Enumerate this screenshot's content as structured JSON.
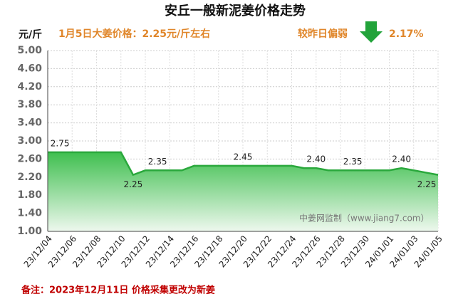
{
  "chart_data": {
    "type": "area",
    "title": "安丘一般新泥姜价格走势",
    "unit_label": "元/斤",
    "annotation": "1月5日大姜价格：2.25元/斤左右",
    "change_label": "较昨日偏弱",
    "change_value": "2.17%",
    "watermark": "中姜网监制（www.jiang7.com）",
    "footnote": "备注：2023年12月11日 价格采集更改为新姜",
    "x": [
      "23/12/04",
      null,
      "23/12/06",
      null,
      "23/12/08",
      null,
      "23/12/10",
      null,
      "23/12/12",
      null,
      "23/12/14",
      null,
      "23/12/16",
      null,
      "23/12/18",
      null,
      "23/12/20",
      null,
      "23/12/22",
      null,
      "23/12/24",
      null,
      "23/12/26",
      null,
      "23/12/28",
      null,
      "23/12/30",
      null,
      "24/01/01",
      null,
      "24/01/03",
      null,
      "24/01/05"
    ],
    "values": [
      2.75,
      2.75,
      2.75,
      2.75,
      2.75,
      2.75,
      2.75,
      2.25,
      2.35,
      2.35,
      2.35,
      2.35,
      2.45,
      2.45,
      2.45,
      2.45,
      2.45,
      2.45,
      2.45,
      2.45,
      2.45,
      2.4,
      2.4,
      2.35,
      2.35,
      2.35,
      2.35,
      2.35,
      2.35,
      2.4,
      2.35,
      2.3,
      2.25
    ],
    "value_labels": [
      null,
      "2.75",
      null,
      null,
      null,
      null,
      null,
      "2.25",
      null,
      "2.35",
      null,
      null,
      null,
      null,
      null,
      null,
      "2.45",
      null,
      null,
      null,
      null,
      null,
      "2.40",
      null,
      null,
      "2.35",
      null,
      null,
      null,
      "2.40",
      null,
      null,
      "2.25"
    ],
    "color": "#2aa83c",
    "ylim": [
      1.0,
      5.0
    ],
    "yticks": [
      {
        "value": 1,
        "label": "1.00"
      },
      {
        "value": 1.4,
        "label": "1.40"
      },
      {
        "value": 1.8,
        "label": "1.80"
      },
      {
        "value": 2.2,
        "label": "2.20"
      },
      {
        "value": 2.6,
        "label": "2.60"
      },
      {
        "value": 3,
        "label": "3.00"
      },
      {
        "value": 3.4,
        "label": "3.40"
      },
      {
        "value": 3.8,
        "label": "3.80"
      },
      {
        "value": 4.2,
        "label": "4.20"
      },
      {
        "value": 4.6,
        "label": "4.60"
      },
      {
        "value": 5,
        "label": "5.00"
      }
    ],
    "grid": true
  }
}
